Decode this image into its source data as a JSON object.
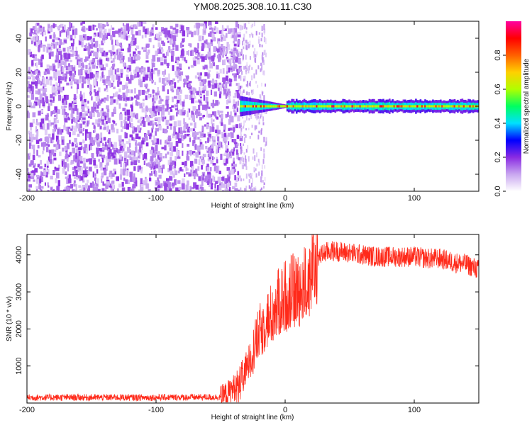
{
  "title": "YM08.2025.308.10.11.C30",
  "chart_data": [
    {
      "type": "heatmap",
      "title": "YM08.2025.308.10.11.C30",
      "xlabel": "Height of straight line (km)",
      "ylabel": "Frequency (Hz)",
      "xlim": [
        -200,
        150
      ],
      "ylim": [
        -50,
        50
      ],
      "xticks": [
        -200,
        -100,
        0,
        100
      ],
      "yticks": [
        -40,
        -20,
        0,
        20,
        40
      ],
      "colorbar": {
        "label": "Normalized spectral amplitude",
        "range": [
          0.0,
          1.0
        ],
        "ticks": [
          "0.0",
          "0.2",
          "0.4",
          "0.6",
          "0.8"
        ],
        "colors": [
          "#ffffff",
          "#c9a7f0",
          "#8a2be2",
          "#0000ff",
          "#00e0ff",
          "#00ff60",
          "#b0ff00",
          "#ffd000",
          "#ff6000",
          "#ff0000",
          "#ff00a0"
        ]
      },
      "regions": [
        {
          "name": "noise",
          "x_range": [
            -200,
            -35
          ],
          "freq_range": [
            -50,
            50
          ],
          "amplitude_range": [
            0.05,
            0.2
          ]
        },
        {
          "name": "transition",
          "x_range": [
            -35,
            -15
          ],
          "freq_range": [
            -50,
            50
          ],
          "amplitude_range": [
            0.0,
            0.1
          ]
        },
        {
          "name": "signal-band",
          "x_range": [
            -35,
            150
          ],
          "center_frequency": 0,
          "amplitude_range": [
            0.3,
            0.95
          ]
        }
      ]
    },
    {
      "type": "line",
      "title": "",
      "xlabel": "Height of straight line (km)",
      "ylabel": "SNR (10 * v/v)",
      "xlim": [
        -200,
        150
      ],
      "ylim": [
        0,
        4550
      ],
      "xticks": [
        -200,
        -100,
        0,
        100
      ],
      "yticks": [
        1000,
        2000,
        3000,
        4000
      ],
      "line_color": "#ff2a1a",
      "series": [
        {
          "name": "SNR",
          "x": [
            -200,
            -150,
            -100,
            -50,
            -45,
            -40,
            -35,
            -30,
            -25,
            -20,
            -15,
            -10,
            -5,
            0,
            5,
            10,
            15,
            20,
            25,
            30,
            35,
            40,
            50,
            60,
            70,
            80,
            90,
            100,
            110,
            120,
            130,
            140,
            150
          ],
          "values": [
            150,
            150,
            150,
            160,
            250,
            400,
            600,
            900,
            1400,
            1900,
            2200,
            2400,
            2700,
            2900,
            3000,
            3050,
            3200,
            3500,
            3900,
            4050,
            4100,
            4100,
            4050,
            4000,
            3950,
            3950,
            3950,
            3950,
            3900,
            3900,
            3800,
            3750,
            3600
          ]
        }
      ]
    }
  ]
}
